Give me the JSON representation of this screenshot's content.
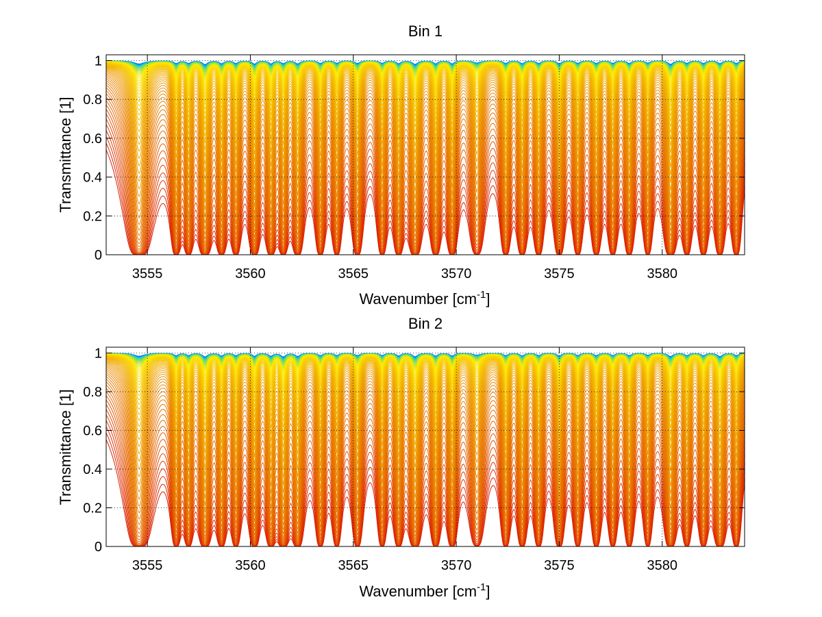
{
  "chart_data": [
    {
      "type": "line",
      "title": "Bin 1",
      "xlabel": "Wavenumber [cm",
      "xlabel_sup": "-1",
      "xlabel_end": "]",
      "ylabel": "Transmittance [1]",
      "xlim": [
        3553,
        3584
      ],
      "ylim": [
        0,
        1.03
      ],
      "xticks": [
        3555,
        3560,
        3565,
        3570,
        3575,
        3580
      ],
      "xtick_labels": [
        "3555",
        "3560",
        "3565",
        "3570",
        "3575",
        "3580"
      ],
      "yticks": [
        0,
        0.2,
        0.4,
        0.6,
        0.8,
        1
      ],
      "ytick_labels": [
        "0",
        "0.2",
        "0.4",
        "0.6",
        "0.8",
        "1"
      ],
      "grid": true,
      "series_count": 60,
      "series_description": "family of transmittance spectra, one per absorber amount, colored blue/cyan (thin, near 1) through yellow to red (thick, near 0)",
      "absorption_lines": [
        {
          "wavenumber": 3554.6,
          "depth": 0.85,
          "width": 0.3
        },
        {
          "wavenumber": 3556.4,
          "depth": 0.7,
          "width": 0.12
        },
        {
          "wavenumber": 3557.0,
          "depth": 0.65,
          "width": 0.12
        },
        {
          "wavenumber": 3557.8,
          "depth": 1.0,
          "width": 0.14
        },
        {
          "wavenumber": 3558.6,
          "depth": 0.75,
          "width": 0.12
        },
        {
          "wavenumber": 3559.3,
          "depth": 0.7,
          "width": 0.12
        },
        {
          "wavenumber": 3560.2,
          "depth": 0.85,
          "width": 0.12
        },
        {
          "wavenumber": 3561.0,
          "depth": 0.8,
          "width": 0.12
        },
        {
          "wavenumber": 3561.6,
          "depth": 0.7,
          "width": 0.12
        },
        {
          "wavenumber": 3562.3,
          "depth": 0.8,
          "width": 0.13
        },
        {
          "wavenumber": 3563.4,
          "depth": 0.7,
          "width": 0.12
        },
        {
          "wavenumber": 3564.2,
          "depth": 0.65,
          "width": 0.12
        },
        {
          "wavenumber": 3565.2,
          "depth": 0.7,
          "width": 0.13
        },
        {
          "wavenumber": 3566.4,
          "depth": 0.65,
          "width": 0.12
        },
        {
          "wavenumber": 3567.2,
          "depth": 0.75,
          "width": 0.12
        },
        {
          "wavenumber": 3568.0,
          "depth": 0.95,
          "width": 0.14
        },
        {
          "wavenumber": 3569.0,
          "depth": 0.8,
          "width": 0.12
        },
        {
          "wavenumber": 3569.8,
          "depth": 0.8,
          "width": 0.12
        },
        {
          "wavenumber": 3571.0,
          "depth": 0.55,
          "width": 0.2
        },
        {
          "wavenumber": 3572.4,
          "depth": 0.7,
          "width": 0.12
        },
        {
          "wavenumber": 3573.2,
          "depth": 0.75,
          "width": 0.12
        },
        {
          "wavenumber": 3574.0,
          "depth": 0.7,
          "width": 0.12
        },
        {
          "wavenumber": 3575.0,
          "depth": 0.8,
          "width": 0.12
        },
        {
          "wavenumber": 3575.9,
          "depth": 0.65,
          "width": 0.12
        },
        {
          "wavenumber": 3576.8,
          "depth": 0.7,
          "width": 0.12
        },
        {
          "wavenumber": 3577.6,
          "depth": 0.65,
          "width": 0.12
        },
        {
          "wavenumber": 3578.4,
          "depth": 0.7,
          "width": 0.12
        },
        {
          "wavenumber": 3579.3,
          "depth": 0.6,
          "width": 0.12
        },
        {
          "wavenumber": 3580.4,
          "depth": 0.95,
          "width": 0.14
        },
        {
          "wavenumber": 3581.2,
          "depth": 0.65,
          "width": 0.12
        },
        {
          "wavenumber": 3582.0,
          "depth": 0.7,
          "width": 0.12
        },
        {
          "wavenumber": 3582.8,
          "depth": 0.75,
          "width": 0.12
        },
        {
          "wavenumber": 3583.6,
          "depth": 0.7,
          "width": 0.12
        }
      ]
    },
    {
      "type": "line",
      "title": "Bin 2",
      "xlabel": "Wavenumber [cm",
      "xlabel_sup": "-1",
      "xlabel_end": "]",
      "ylabel": "Transmittance [1]",
      "xlim": [
        3553,
        3584
      ],
      "ylim": [
        0,
        1.03
      ],
      "xticks": [
        3555,
        3560,
        3565,
        3570,
        3575,
        3580
      ],
      "xtick_labels": [
        "3555",
        "3560",
        "3565",
        "3570",
        "3575",
        "3580"
      ],
      "yticks": [
        0,
        0.2,
        0.4,
        0.6,
        0.8,
        1
      ],
      "ytick_labels": [
        "0",
        "0.2",
        "0.4",
        "0.6",
        "0.8",
        "1"
      ],
      "grid": true,
      "series_count": 60,
      "series_description": "family of transmittance spectra, one per absorber amount, colored blue/cyan (thin, near 1) through yellow to red (thick, near 0)",
      "absorption_lines": [
        {
          "wavenumber": 3554.6,
          "depth": 0.8,
          "width": 0.3
        },
        {
          "wavenumber": 3556.4,
          "depth": 0.65,
          "width": 0.12
        },
        {
          "wavenumber": 3557.0,
          "depth": 0.6,
          "width": 0.12
        },
        {
          "wavenumber": 3557.8,
          "depth": 0.95,
          "width": 0.14
        },
        {
          "wavenumber": 3558.6,
          "depth": 0.7,
          "width": 0.12
        },
        {
          "wavenumber": 3559.3,
          "depth": 0.65,
          "width": 0.12
        },
        {
          "wavenumber": 3560.2,
          "depth": 0.8,
          "width": 0.12
        },
        {
          "wavenumber": 3561.0,
          "depth": 0.75,
          "width": 0.12
        },
        {
          "wavenumber": 3561.6,
          "depth": 0.95,
          "width": 0.13
        },
        {
          "wavenumber": 3562.3,
          "depth": 0.85,
          "width": 0.13
        },
        {
          "wavenumber": 3563.4,
          "depth": 0.65,
          "width": 0.12
        },
        {
          "wavenumber": 3564.2,
          "depth": 0.6,
          "width": 0.12
        },
        {
          "wavenumber": 3565.2,
          "depth": 0.65,
          "width": 0.13
        },
        {
          "wavenumber": 3566.4,
          "depth": 0.6,
          "width": 0.12
        },
        {
          "wavenumber": 3567.2,
          "depth": 0.7,
          "width": 0.12
        },
        {
          "wavenumber": 3568.0,
          "depth": 0.95,
          "width": 0.14
        },
        {
          "wavenumber": 3569.0,
          "depth": 0.75,
          "width": 0.12
        },
        {
          "wavenumber": 3569.8,
          "depth": 0.75,
          "width": 0.12
        },
        {
          "wavenumber": 3571.0,
          "depth": 0.5,
          "width": 0.22
        },
        {
          "wavenumber": 3572.4,
          "depth": 0.65,
          "width": 0.12
        },
        {
          "wavenumber": 3573.2,
          "depth": 0.7,
          "width": 0.12
        },
        {
          "wavenumber": 3574.0,
          "depth": 0.65,
          "width": 0.12
        },
        {
          "wavenumber": 3575.0,
          "depth": 0.75,
          "width": 0.12
        },
        {
          "wavenumber": 3575.9,
          "depth": 0.6,
          "width": 0.12
        },
        {
          "wavenumber": 3576.8,
          "depth": 0.65,
          "width": 0.12
        },
        {
          "wavenumber": 3577.6,
          "depth": 0.6,
          "width": 0.12
        },
        {
          "wavenumber": 3578.4,
          "depth": 0.65,
          "width": 0.12
        },
        {
          "wavenumber": 3579.3,
          "depth": 0.55,
          "width": 0.12
        },
        {
          "wavenumber": 3580.4,
          "depth": 0.9,
          "width": 0.14
        },
        {
          "wavenumber": 3581.2,
          "depth": 0.6,
          "width": 0.12
        },
        {
          "wavenumber": 3582.0,
          "depth": 0.65,
          "width": 0.12
        },
        {
          "wavenumber": 3582.8,
          "depth": 0.9,
          "width": 0.14
        },
        {
          "wavenumber": 3583.6,
          "depth": 0.65,
          "width": 0.12
        }
      ]
    }
  ]
}
